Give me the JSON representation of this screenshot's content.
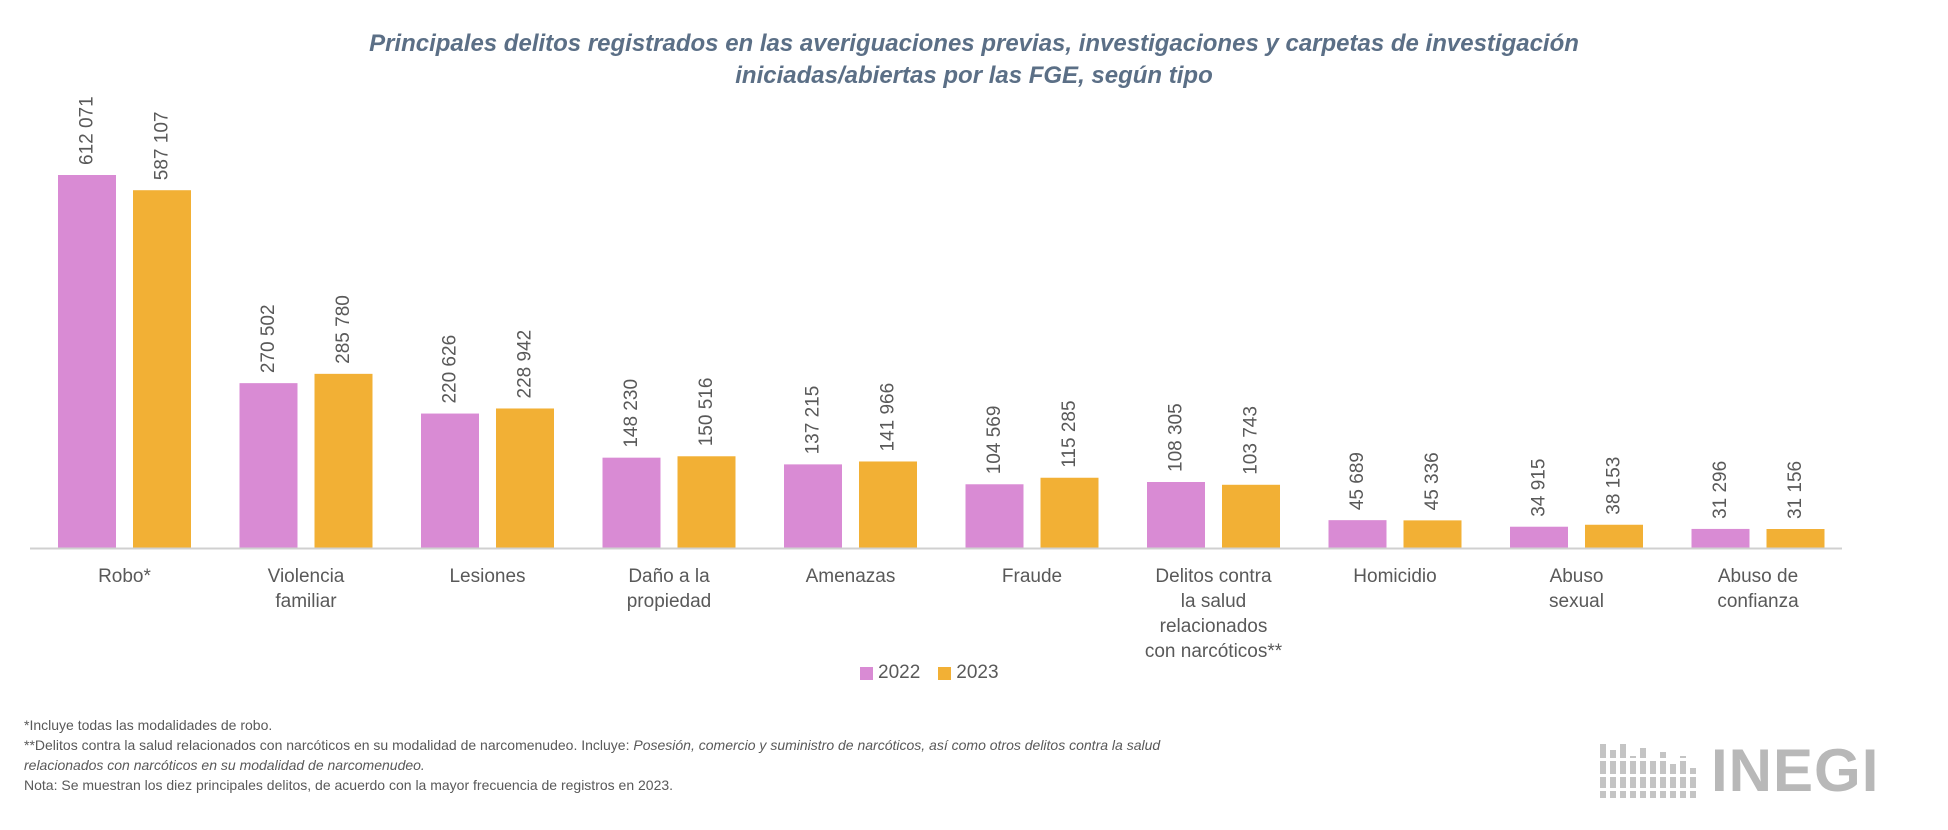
{
  "chart_data": {
    "type": "bar",
    "title_lines": [
      "Principales delitos registrados en las averiguaciones previas, investigaciones y carpetas de investigación",
      "iniciadas/abiertas por las FGE, según tipo"
    ],
    "categories": [
      [
        "Robo*"
      ],
      [
        "Violencia",
        "familiar"
      ],
      [
        "Lesiones"
      ],
      [
        "Daño a la",
        "propiedad"
      ],
      [
        "Amenazas"
      ],
      [
        "Fraude"
      ],
      [
        "Delitos contra",
        "la salud",
        "relacionados",
        "con narcóticos**"
      ],
      [
        "Homicidio"
      ],
      [
        "Abuso",
        "sexual"
      ],
      [
        "Abuso de",
        "confianza"
      ]
    ],
    "series": [
      {
        "name": "2022",
        "color": "#d98bd4",
        "values": [
          612071,
          270502,
          220626,
          148230,
          137215,
          104569,
          108305,
          45689,
          34915,
          31296
        ],
        "labels": [
          "612 071",
          "270 502",
          "220 626",
          "148 230",
          "137 215",
          "104 569",
          "108 305",
          "45 689",
          "34 915",
          "31 296"
        ]
      },
      {
        "name": "2023",
        "color": "#f2b035",
        "values": [
          587107,
          285780,
          228942,
          150516,
          141966,
          115285,
          103743,
          45336,
          38153,
          31156
        ],
        "labels": [
          "587 107",
          "285 780",
          "228 942",
          "150 516",
          "141 966",
          "115 285",
          "103 743",
          "45 336",
          "38 153",
          "31 156"
        ]
      }
    ],
    "ylim": [
      0,
      612071
    ],
    "legend_position": "bottom-center",
    "grid": false
  },
  "notes": {
    "note1": "*Incluye todas las modalidades de robo.",
    "note2_start": "**Delitos contra la salud relacionados con narcóticos en su modalidad de narcomenudeo. Incluye: ",
    "note2_italic": "Posesión, comercio y suministro de narcóticos, así como otros delitos contra la salud",
    "note2_cont": "relacionados con narcóticos en su modalidad de narcomenudeo.",
    "note3": "Nota: Se muestran los diez principales delitos, de acuerdo con la mayor frecuencia de registros en 2023."
  },
  "logo": {
    "text": "INEGI"
  }
}
